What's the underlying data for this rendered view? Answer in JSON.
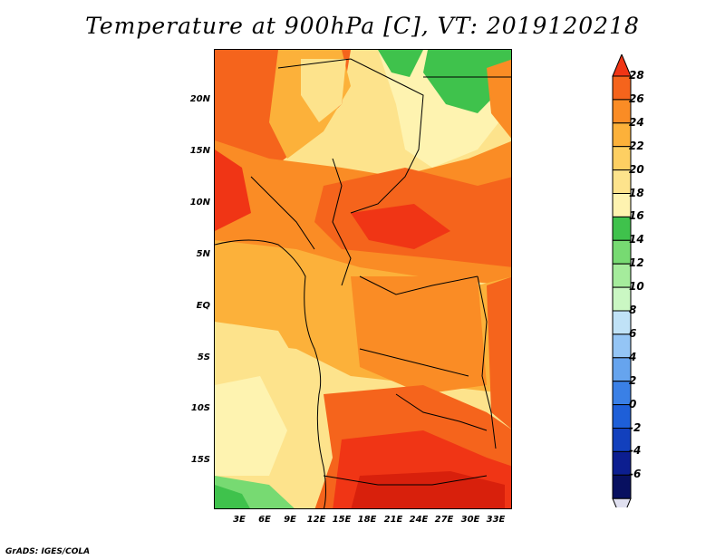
{
  "title": "Temperature at 900hPa [C], VT: 2019120218",
  "credit": "GrADS: IGES/COLA",
  "map": {
    "lat_labels": [
      "20N",
      "15N",
      "10N",
      "5N",
      "EQ",
      "5S",
      "10S",
      "15S"
    ],
    "lon_labels": [
      "3E",
      "6E",
      "9E",
      "12E",
      "15E",
      "18E",
      "21E",
      "24E",
      "27E",
      "30E",
      "33E"
    ],
    "lat_range": [
      -20,
      24
    ],
    "lon_range": [
      0,
      35
    ]
  },
  "colorbar": {
    "levels": [
      "28",
      "26",
      "24",
      "22",
      "20",
      "18",
      "16",
      "14",
      "12",
      "10",
      "8",
      "6",
      "4",
      "2",
      "0",
      "-2",
      "-4",
      "-6"
    ],
    "colors": [
      "#f03515",
      "#f5641c",
      "#fa8c25",
      "#fcb13a",
      "#fdcf62",
      "#fde38c",
      "#fef3b0",
      "#3fc24c",
      "#77da72",
      "#a5ec9c",
      "#caf7c3",
      "#c0e2f7",
      "#94c5f5",
      "#66a4ee",
      "#3a80e6",
      "#1e5fd8",
      "#1240bd",
      "#0c1e90",
      "#081060",
      "#e0e0f0"
    ]
  }
}
